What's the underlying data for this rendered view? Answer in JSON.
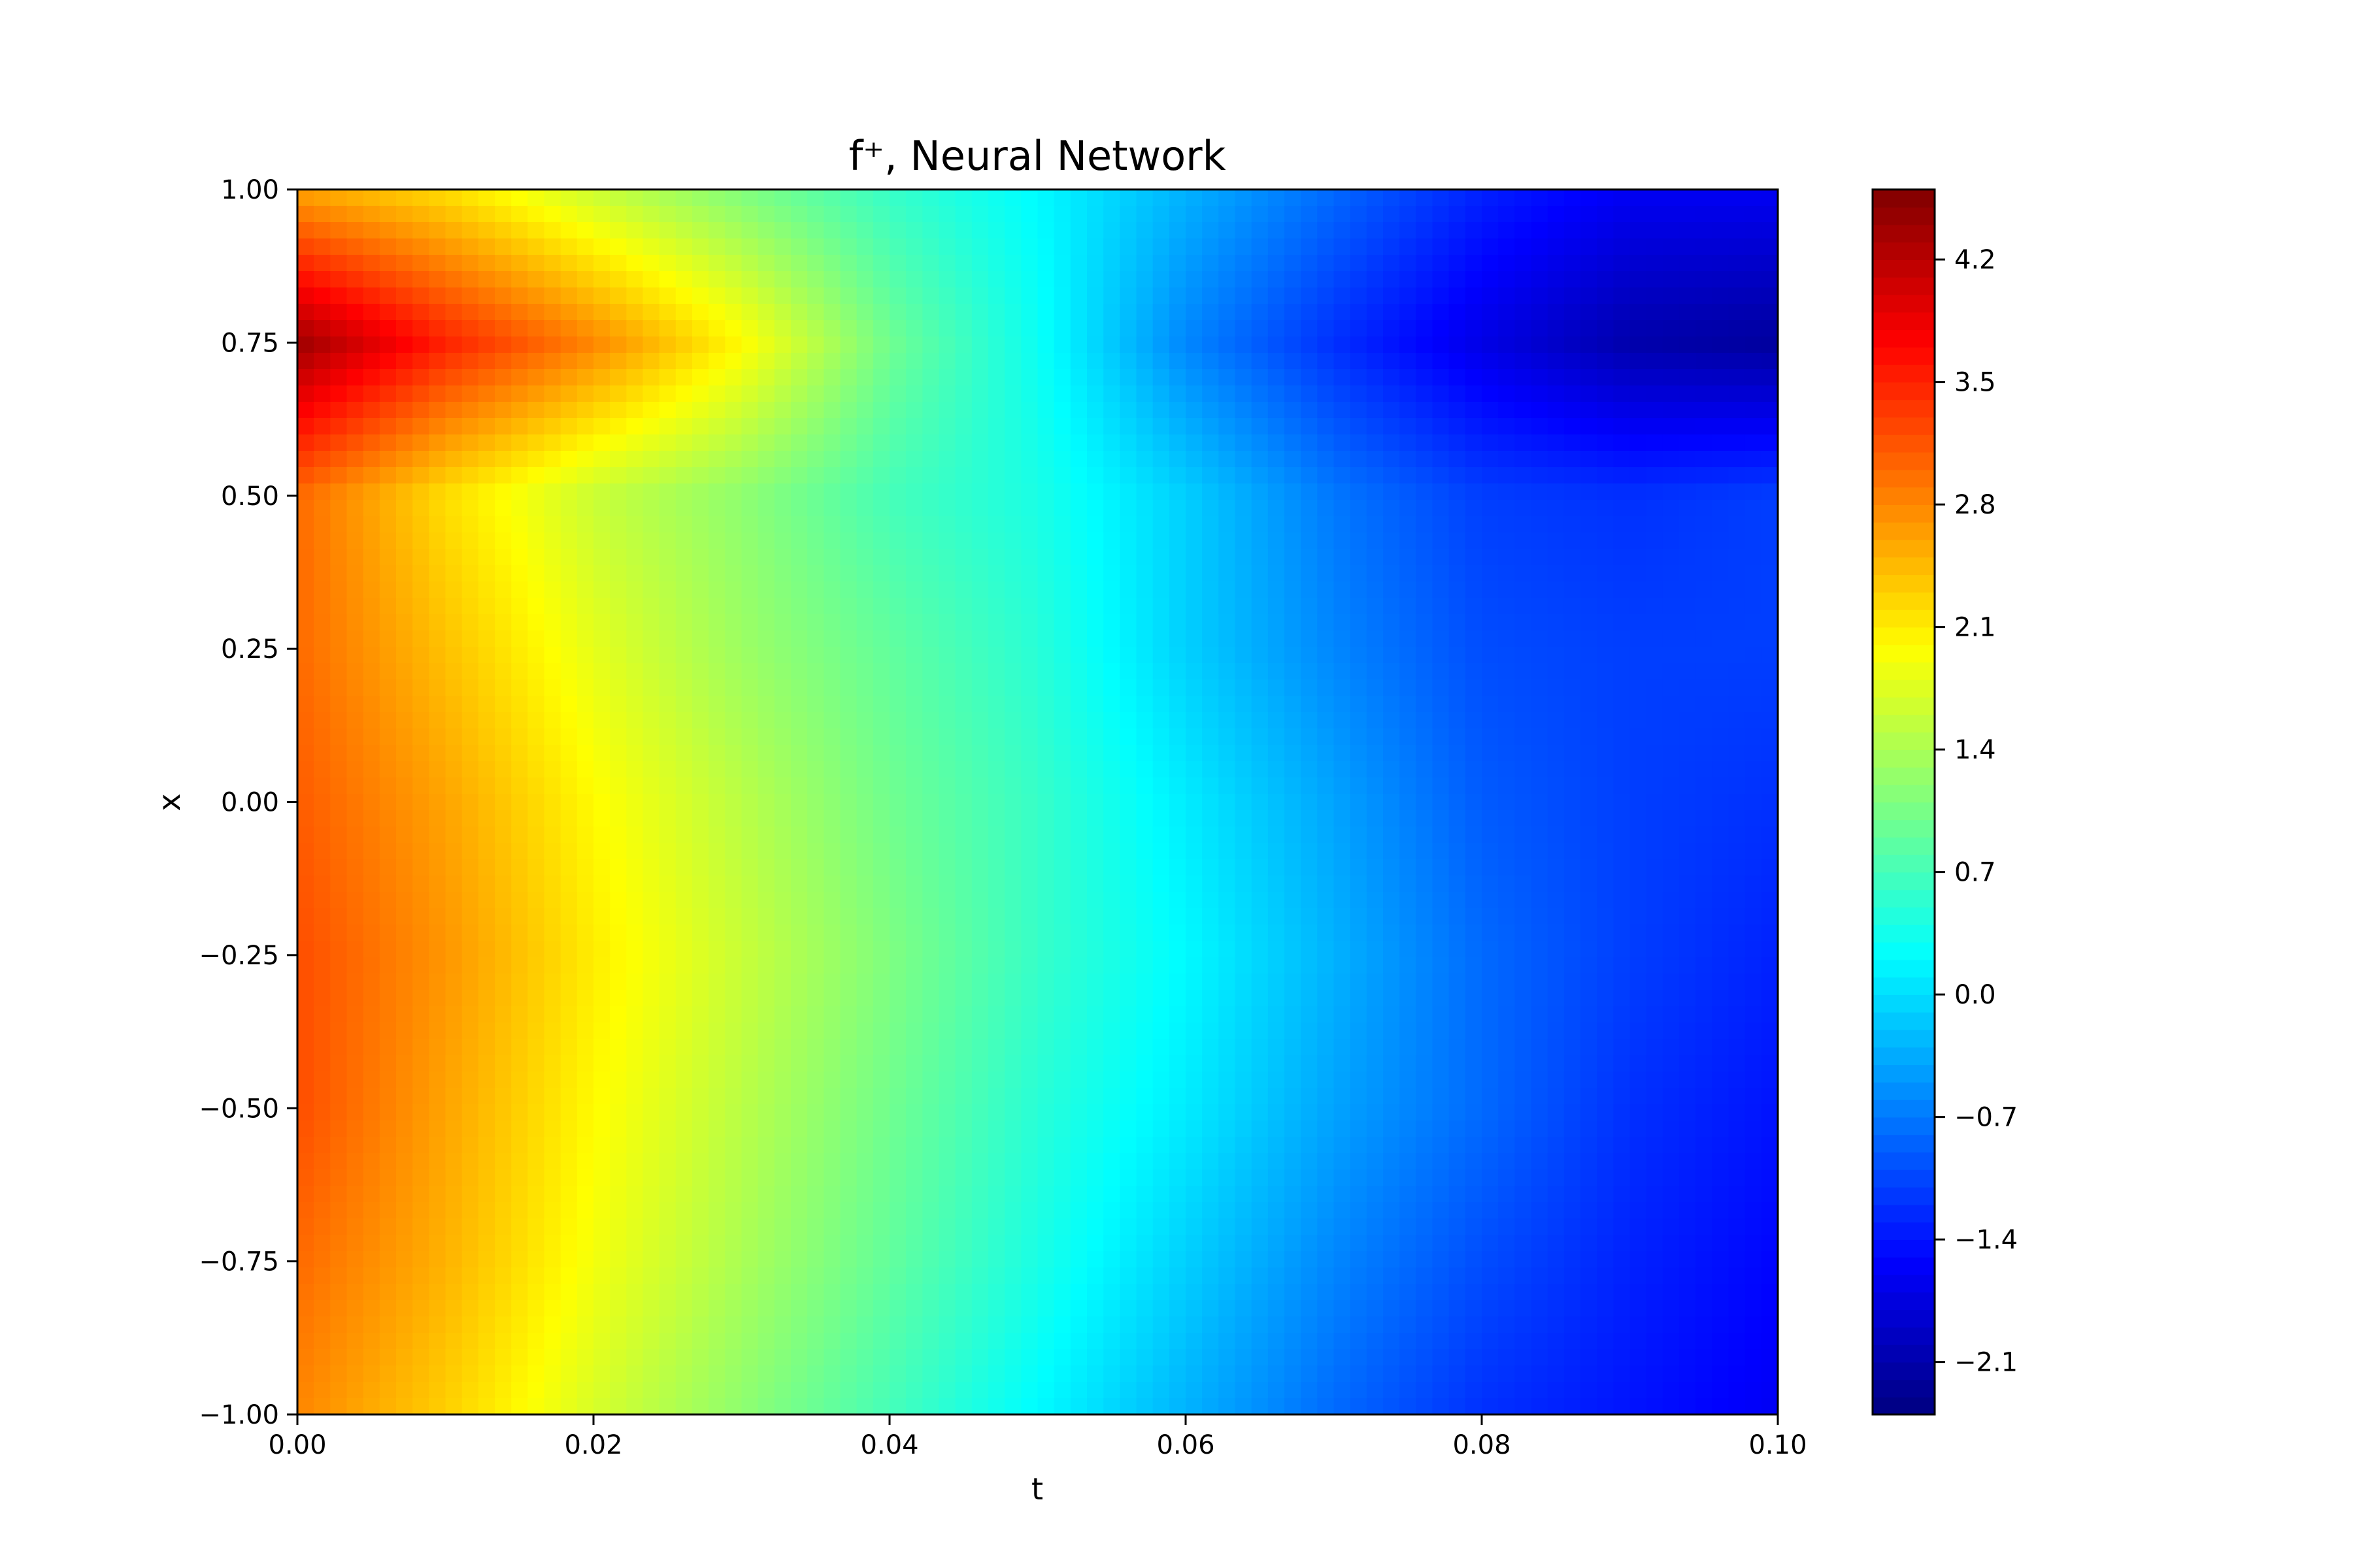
{
  "chart_data": {
    "type": "heatmap",
    "title": "f⁺, Neural Network",
    "xlabel": "t",
    "ylabel": "x",
    "xlim": [
      0.0,
      0.1
    ],
    "ylim": [
      -1.0,
      1.0
    ],
    "x_ticks": [
      "0.00",
      "0.02",
      "0.04",
      "0.06",
      "0.08",
      "0.10"
    ],
    "y_ticks": [
      "−1.00",
      "−0.75",
      "−0.50",
      "−0.25",
      "0.00",
      "0.25",
      "0.50",
      "0.75",
      "1.00"
    ],
    "colormap": "jet",
    "colorbar": {
      "range": [
        -2.4,
        4.6
      ],
      "ticks": [
        "−2.1",
        "−1.4",
        "−0.7",
        "0.0",
        "0.7",
        "1.4",
        "2.1",
        "2.8",
        "3.5",
        "4.2"
      ]
    },
    "grid": false,
    "x": [
      0.0,
      0.01,
      0.02,
      0.03,
      0.04,
      0.05,
      0.06,
      0.07,
      0.08,
      0.09,
      0.1
    ],
    "y": [
      1.0,
      0.75,
      0.5,
      0.25,
      0.0,
      -0.25,
      -0.5,
      -0.75,
      -1.0
    ],
    "z": [
      [
        2.6,
        2.2,
        1.6,
        1.1,
        0.6,
        0.2,
        -0.3,
        -0.8,
        -1.3,
        -1.6,
        -1.6
      ],
      [
        4.4,
        3.5,
        2.8,
        2.0,
        1.0,
        0.3,
        -0.6,
        -1.2,
        -1.7,
        -2.1,
        -2.2
      ],
      [
        3.0,
        2.2,
        1.6,
        1.2,
        0.7,
        0.4,
        -0.1,
        -0.7,
        -1.1,
        -1.2,
        -1.1
      ],
      [
        3.0,
        2.4,
        1.8,
        1.3,
        0.9,
        0.5,
        -0.1,
        -0.6,
        -1.0,
        -1.1,
        -1.1
      ],
      [
        3.1,
        2.6,
        2.0,
        1.5,
        1.0,
        0.6,
        0.1,
        -0.4,
        -0.9,
        -1.1,
        -1.2
      ],
      [
        3.2,
        2.7,
        2.1,
        1.6,
        1.1,
        0.6,
        0.2,
        -0.3,
        -0.8,
        -1.1,
        -1.3
      ],
      [
        3.2,
        2.6,
        2.0,
        1.5,
        1.0,
        0.5,
        0.1,
        -0.4,
        -0.8,
        -1.2,
        -1.4
      ],
      [
        3.0,
        2.5,
        1.9,
        1.4,
        0.9,
        0.4,
        -0.1,
        -0.6,
        -1.0,
        -1.3,
        -1.5
      ],
      [
        2.8,
        2.3,
        1.7,
        1.2,
        0.7,
        0.2,
        -0.3,
        -0.8,
        -1.2,
        -1.4,
        -1.6
      ]
    ]
  }
}
